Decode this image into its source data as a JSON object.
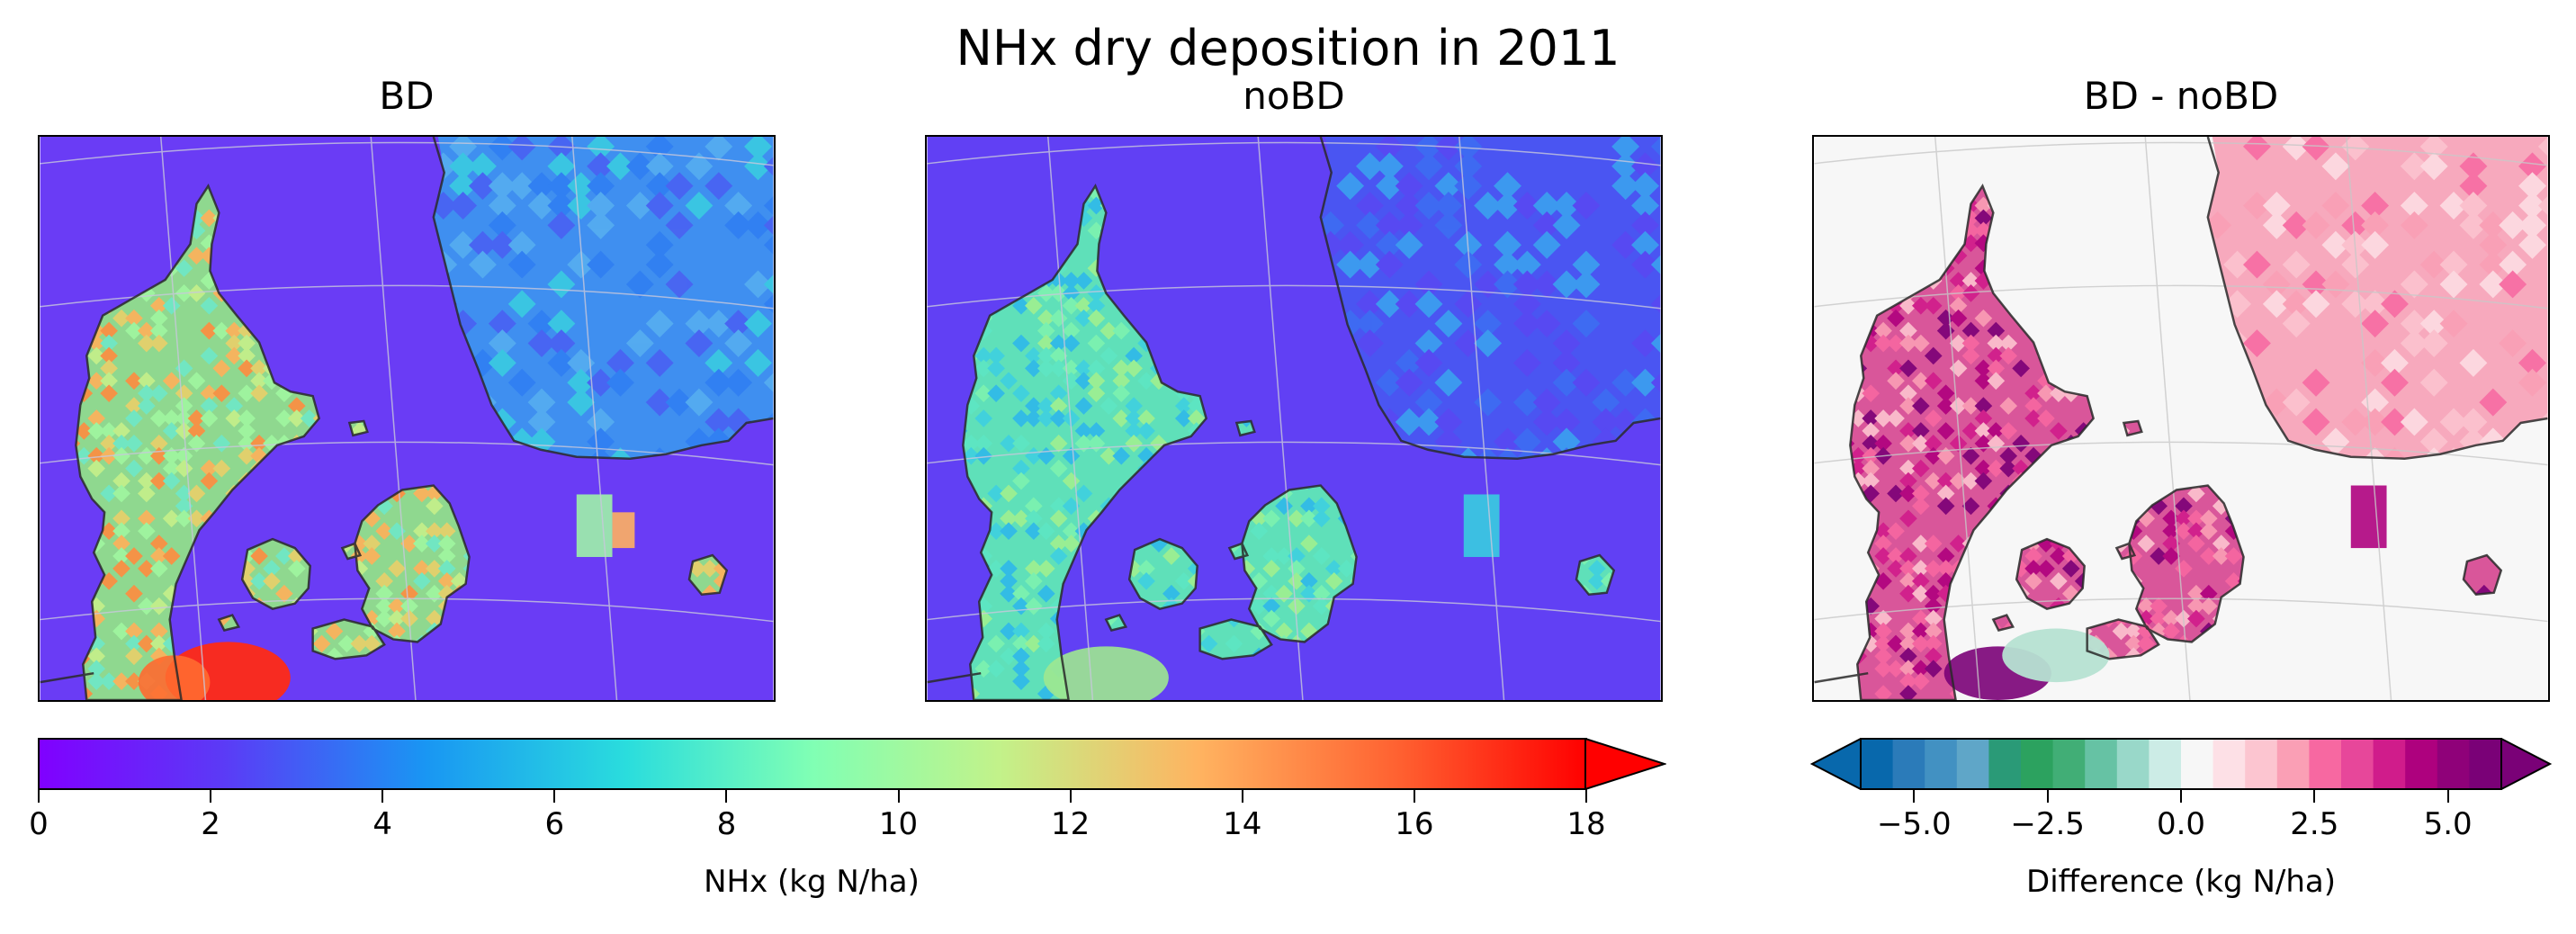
{
  "figure": {
    "title": "NHx dry deposition in 2011"
  },
  "panels": [
    {
      "title": "BD"
    },
    {
      "title": "noBD"
    },
    {
      "title": "BD - noBD"
    }
  ],
  "colorbars": {
    "nhx": {
      "label": "NHx (kg N/ha)",
      "ticks": [
        "0",
        "2",
        "4",
        "6",
        "8",
        "10",
        "12",
        "14",
        "16",
        "18"
      ],
      "colormap": "rainbow",
      "range": [
        0,
        18
      ],
      "extend": "max"
    },
    "diff": {
      "label": "Difference (kg N/ha)",
      "ticks": [
        "−5.0",
        "−2.5",
        "0.0",
        "2.5",
        "5.0"
      ],
      "range": [
        -6,
        6
      ],
      "extend": "both",
      "colors": [
        "#0868ac",
        "#2b7bb9",
        "#4291c2",
        "#5fa6c8",
        "#2a9a77",
        "#2ca25f",
        "#41ae76",
        "#66c2a4",
        "#99d8c9",
        "#ccece6",
        "#f7f7f7",
        "#fde0e6",
        "#fcc5d0",
        "#fa9fb5",
        "#f768a1",
        "#e7479a",
        "#d01c8b",
        "#ae017e",
        "#8f0179",
        "#7a0177"
      ]
    }
  },
  "map_layers": {
    "land_color_bd": "#8fd88f",
    "sea_color_bd": "#6a3cf5",
    "land_color_nobd": "#5fe0b9",
    "sea_color_nobd": "#6140f4",
    "sweden_color": "#3f8ff0",
    "hotspot_color": "#ff2a15",
    "diff_land_color": "#d9569a",
    "diff_sweden_color": "#f7a9bd",
    "diff_sea_color": "#f7f7f7",
    "diff_negative_color": "#b6e2d2",
    "coast_color": "#2a2a2a",
    "grid_color": "#c8c8dc"
  }
}
